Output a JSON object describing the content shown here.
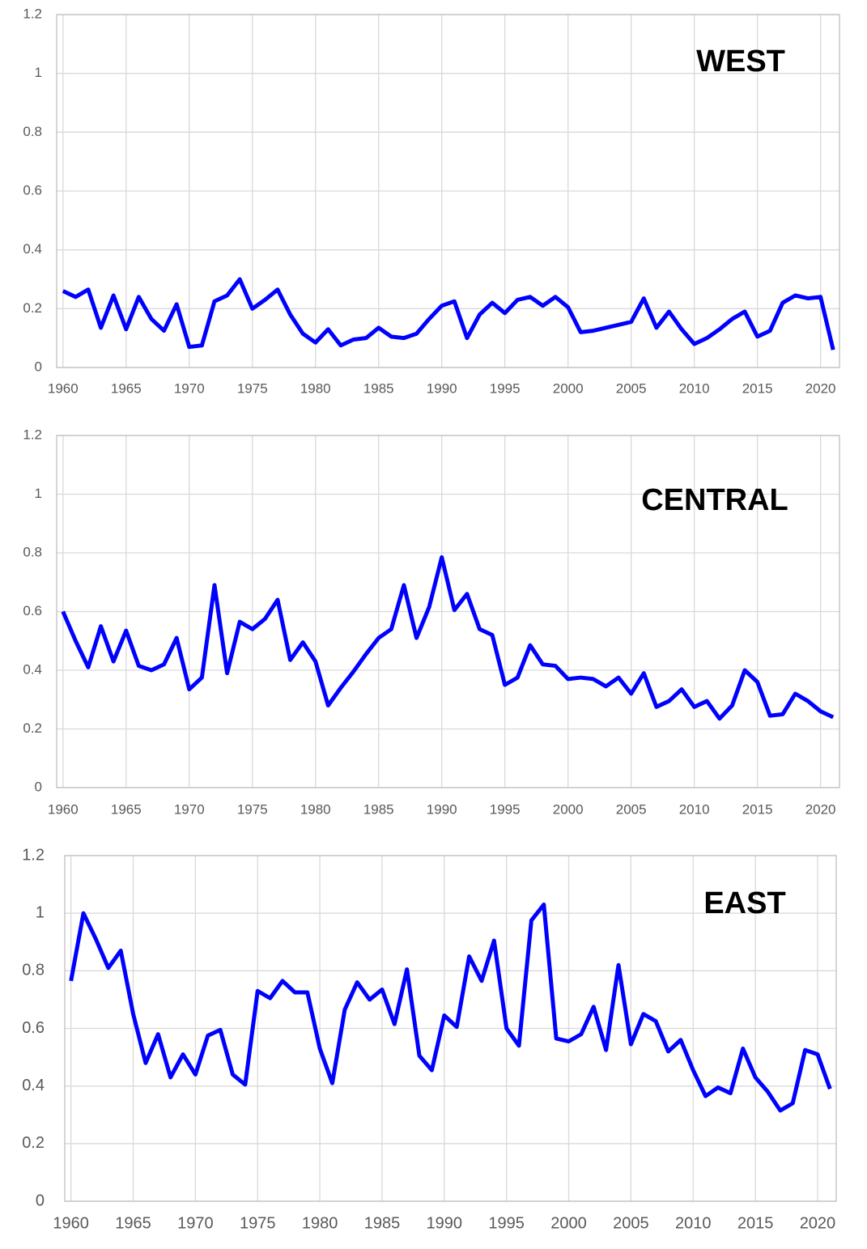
{
  "chart_data": [
    {
      "type": "line",
      "annotation": "WEST",
      "color": "#0000ff",
      "grid": true,
      "x": [
        1960,
        1961,
        1962,
        1963,
        1964,
        1965,
        1966,
        1967,
        1968,
        1969,
        1970,
        1971,
        1972,
        1973,
        1974,
        1975,
        1976,
        1977,
        1978,
        1979,
        1980,
        1981,
        1982,
        1983,
        1984,
        1985,
        1986,
        1987,
        1988,
        1989,
        1990,
        1991,
        1992,
        1993,
        1994,
        1995,
        1996,
        1997,
        1998,
        1999,
        2000,
        2001,
        2002,
        2003,
        2004,
        2005,
        2006,
        2007,
        2008,
        2009,
        2010,
        2011,
        2012,
        2013,
        2014,
        2015,
        2016,
        2017,
        2018,
        2019,
        2020,
        2021
      ],
      "values": [
        0.26,
        0.24,
        0.265,
        0.135,
        0.245,
        0.13,
        0.24,
        0.165,
        0.125,
        0.215,
        0.07,
        0.075,
        0.225,
        0.245,
        0.3,
        0.2,
        0.23,
        0.265,
        0.18,
        0.115,
        0.085,
        0.13,
        0.075,
        0.095,
        0.1,
        0.135,
        0.105,
        0.1,
        0.115,
        0.165,
        0.21,
        0.225,
        0.1,
        0.18,
        0.22,
        0.185,
        0.23,
        0.24,
        0.21,
        0.24,
        0.205,
        0.12,
        0.125,
        0.135,
        0.145,
        0.155,
        0.235,
        0.135,
        0.19,
        0.13,
        0.08,
        0.1,
        0.13,
        0.165,
        0.19,
        0.105,
        0.125,
        0.22,
        0.245,
        0.235,
        0.24,
        0.06
      ],
      "xlim": [
        1959.5,
        2021.5
      ],
      "xticks": [
        1960,
        1965,
        1970,
        1975,
        1980,
        1985,
        1990,
        1995,
        2000,
        2005,
        2010,
        2015,
        2020
      ],
      "ylim": [
        0,
        1.2
      ],
      "yticks": [
        0,
        0.2,
        0.4,
        0.6,
        0.8,
        1,
        1.2
      ]
    },
    {
      "type": "line",
      "annotation": "CENTRAL",
      "color": "#0000ff",
      "grid": true,
      "x": [
        1960,
        1961,
        1962,
        1963,
        1964,
        1965,
        1966,
        1967,
        1968,
        1969,
        1970,
        1971,
        1972,
        1973,
        1974,
        1975,
        1976,
        1977,
        1978,
        1979,
        1980,
        1981,
        1982,
        1983,
        1984,
        1985,
        1986,
        1987,
        1988,
        1989,
        1990,
        1991,
        1992,
        1993,
        1994,
        1995,
        1996,
        1997,
        1998,
        1999,
        2000,
        2001,
        2002,
        2003,
        2004,
        2005,
        2006,
        2007,
        2008,
        2009,
        2010,
        2011,
        2012,
        2013,
        2014,
        2015,
        2016,
        2017,
        2018,
        2019,
        2020,
        2021
      ],
      "values": [
        0.6,
        0.5,
        0.41,
        0.55,
        0.43,
        0.535,
        0.415,
        0.4,
        0.42,
        0.51,
        0.335,
        0.375,
        0.69,
        0.39,
        0.565,
        0.54,
        0.575,
        0.64,
        0.435,
        0.495,
        0.43,
        0.28,
        0.34,
        0.395,
        0.455,
        0.51,
        0.54,
        0.69,
        0.51,
        0.615,
        0.785,
        0.605,
        0.66,
        0.54,
        0.52,
        0.35,
        0.375,
        0.485,
        0.42,
        0.415,
        0.37,
        0.375,
        0.37,
        0.345,
        0.375,
        0.32,
        0.39,
        0.275,
        0.295,
        0.335,
        0.275,
        0.295,
        0.235,
        0.28,
        0.4,
        0.36,
        0.245,
        0.25,
        0.32,
        0.295,
        0.26,
        0.24
      ],
      "xlim": [
        1959.5,
        2021.5
      ],
      "xticks": [
        1960,
        1965,
        1970,
        1975,
        1980,
        1985,
        1990,
        1995,
        2000,
        2005,
        2010,
        2015,
        2020
      ],
      "ylim": [
        0,
        1.2
      ],
      "yticks": [
        0,
        0.2,
        0.4,
        0.6,
        0.8,
        1,
        1.2
      ]
    },
    {
      "type": "line",
      "annotation": "EAST",
      "color": "#0000ff",
      "grid": true,
      "x": [
        1960,
        1961,
        1962,
        1963,
        1964,
        1965,
        1966,
        1967,
        1968,
        1969,
        1970,
        1971,
        1972,
        1973,
        1974,
        1975,
        1976,
        1977,
        1978,
        1979,
        1980,
        1981,
        1982,
        1983,
        1984,
        1985,
        1986,
        1987,
        1988,
        1989,
        1990,
        1991,
        1992,
        1993,
        1994,
        1995,
        1996,
        1997,
        1998,
        1999,
        2000,
        2001,
        2002,
        2003,
        2004,
        2005,
        2006,
        2007,
        2008,
        2009,
        2010,
        2011,
        2012,
        2013,
        2014,
        2015,
        2016,
        2017,
        2018,
        2019,
        2020,
        2021
      ],
      "values": [
        0.765,
        1.0,
        0.91,
        0.81,
        0.87,
        0.65,
        0.48,
        0.58,
        0.43,
        0.51,
        0.44,
        0.575,
        0.595,
        0.44,
        0.405,
        0.73,
        0.705,
        0.765,
        0.725,
        0.725,
        0.53,
        0.41,
        0.665,
        0.76,
        0.7,
        0.735,
        0.615,
        0.805,
        0.505,
        0.455,
        0.645,
        0.605,
        0.85,
        0.765,
        0.905,
        0.6,
        0.54,
        0.975,
        1.03,
        0.565,
        0.555,
        0.58,
        0.675,
        0.525,
        0.82,
        0.545,
        0.65,
        0.625,
        0.52,
        0.56,
        0.455,
        0.365,
        0.395,
        0.375,
        0.53,
        0.43,
        0.38,
        0.315,
        0.34,
        0.525,
        0.51,
        0.39
      ],
      "xlim": [
        1959.5,
        2021.5
      ],
      "xticks": [
        1960,
        1965,
        1970,
        1975,
        1980,
        1985,
        1990,
        1995,
        2000,
        2005,
        2010,
        2015,
        2020
      ],
      "ylim": [
        0,
        1.2
      ],
      "yticks": [
        0,
        0.2,
        0.4,
        0.6,
        0.8,
        1,
        1.2
      ]
    }
  ]
}
